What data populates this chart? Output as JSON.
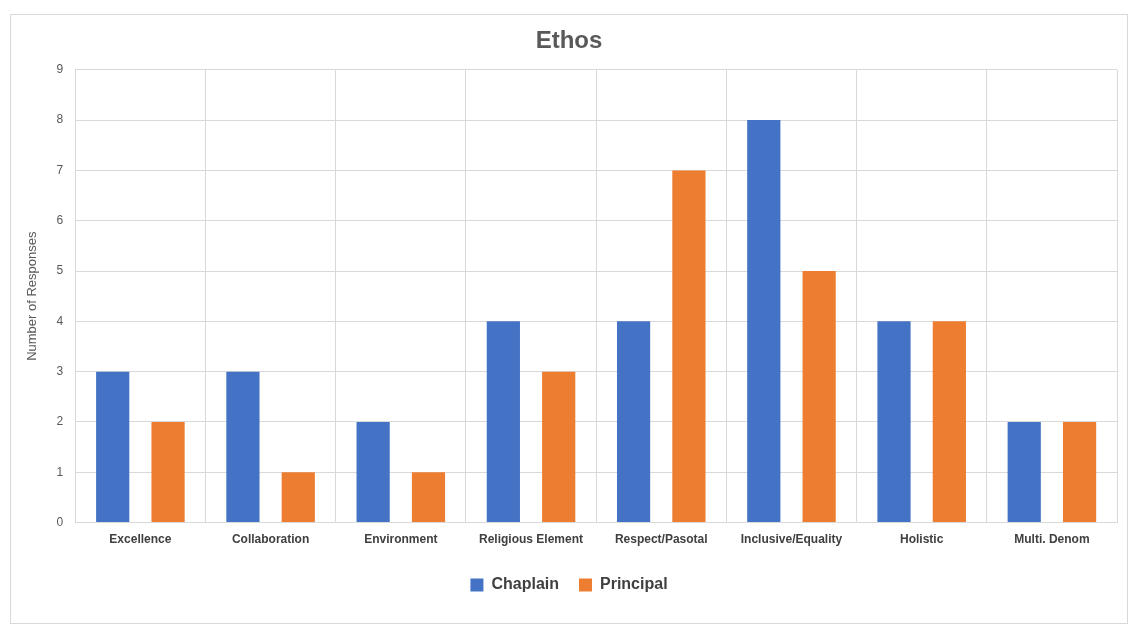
{
  "chart_data": {
    "type": "bar",
    "title": "Ethos",
    "ylabel": "Number of Responses",
    "categories": [
      "Excellence",
      "Collaboration",
      "Environment",
      "Religious Element",
      "Respect/Pasotal",
      "Inclusive/Equality",
      "Holistic",
      "Multi. Denom"
    ],
    "series": [
      {
        "name": "Chaplain",
        "color": "#4472c4",
        "values": [
          3,
          3,
          2,
          4,
          4,
          8,
          4,
          2
        ]
      },
      {
        "name": "Principal",
        "color": "#ed7d31",
        "values": [
          2,
          1,
          1,
          3,
          7,
          5,
          4,
          2
        ]
      }
    ],
    "ylim": [
      0,
      9
    ],
    "yticks": [
      0,
      1,
      2,
      3,
      4,
      5,
      6,
      7,
      8,
      9
    ],
    "grid": true,
    "legend": "bottom"
  }
}
